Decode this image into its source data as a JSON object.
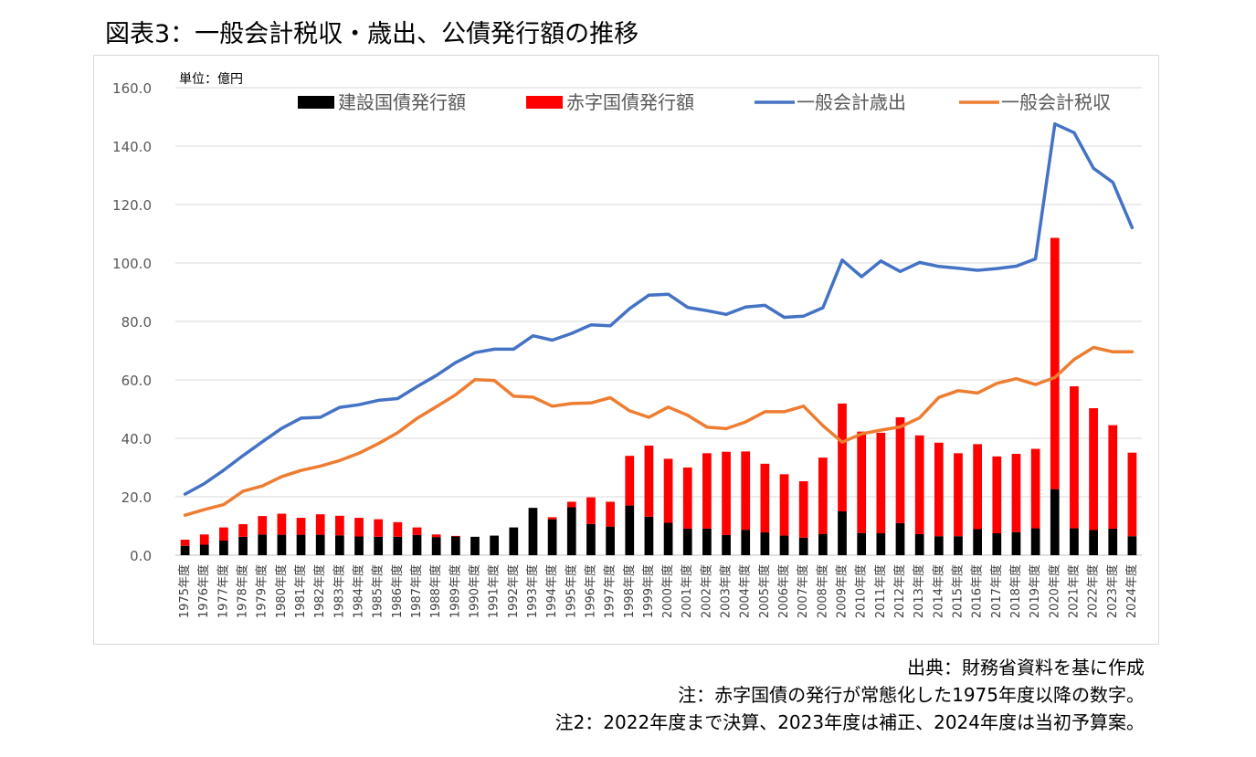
{
  "figure": {
    "title": "図表3：一般会計税収・歳出、公債発行額の推移"
  },
  "chart_data": {
    "type": "bar",
    "unit_label": "単位：億円",
    "stacked": true,
    "grid": true,
    "legend_position": "top",
    "ylim": [
      0,
      160
    ],
    "yticks": [
      "0.0",
      "20.0",
      "40.0",
      "60.0",
      "80.0",
      "100.0",
      "120.0",
      "140.0",
      "160.0"
    ],
    "categories": [
      "1975年度",
      "1976年度",
      "1977年度",
      "1978年度",
      "1979年度",
      "1980年度",
      "1981年度",
      "1982年度",
      "1983年度",
      "1984年度",
      "1985年度",
      "1986年度",
      "1987年度",
      "1988年度",
      "1989年度",
      "1990年度",
      "1991年度",
      "1992年度",
      "1993年度",
      "1994年度",
      "1995年度",
      "1996年度",
      "1997年度",
      "1998年度",
      "1999年度",
      "2000年度",
      "2001年度",
      "2002年度",
      "2003年度",
      "2004年度",
      "2005年度",
      "2006年度",
      "2007年度",
      "2008年度",
      "2009年度",
      "2010年度",
      "2011年度",
      "2012年度",
      "2013年度",
      "2014年度",
      "2015年度",
      "2016年度",
      "2017年度",
      "2018年度",
      "2019年度",
      "2020年度",
      "2021年度",
      "2022年度",
      "2023年度",
      "2024年度"
    ],
    "series": [
      {
        "name": "建設国債発行額",
        "kind": "bar",
        "color": "#000000",
        "values": [
          3.2,
          3.6,
          5.0,
          6.3,
          7.1,
          7.0,
          7.0,
          7.0,
          6.8,
          6.4,
          6.3,
          6.3,
          6.9,
          6.2,
          6.4,
          6.3,
          6.7,
          9.5,
          16.2,
          12.3,
          16.4,
          10.7,
          9.8,
          17.0,
          13.2,
          11.1,
          9.1,
          9.1,
          6.9,
          8.7,
          7.8,
          6.7,
          6.0,
          7.3,
          15.0,
          7.6,
          7.5,
          11.0,
          7.2,
          6.5,
          6.5,
          8.9,
          7.5,
          7.9,
          9.2,
          22.6,
          9.2,
          8.6,
          9.1,
          6.5
        ]
      },
      {
        "name": "赤字国債発行額",
        "kind": "bar",
        "color": "#ff0000",
        "values": [
          2.1,
          3.5,
          4.5,
          4.3,
          6.3,
          7.2,
          5.8,
          7.0,
          6.7,
          6.4,
          6.0,
          5.0,
          2.6,
          0.9,
          0.2,
          0.0,
          0.0,
          0.0,
          0.0,
          0.7,
          1.9,
          9.1,
          8.5,
          17.0,
          24.3,
          21.9,
          20.9,
          25.8,
          28.5,
          26.8,
          23.5,
          21.0,
          19.3,
          26.1,
          36.9,
          34.7,
          34.4,
          36.2,
          33.8,
          32.0,
          28.4,
          29.1,
          26.3,
          26.8,
          27.2,
          86.0,
          48.6,
          41.7,
          35.4,
          28.6
        ]
      },
      {
        "name": "一般会計歳出",
        "kind": "line",
        "color": "#4472c4",
        "values": [
          20.9,
          24.5,
          29.1,
          34.1,
          38.8,
          43.4,
          46.9,
          47.2,
          50.6,
          51.5,
          53.0,
          53.6,
          57.7,
          61.5,
          65.9,
          69.3,
          70.5,
          70.5,
          75.1,
          73.6,
          75.9,
          78.8,
          78.5,
          84.4,
          89.0,
          89.3,
          84.8,
          83.7,
          82.4,
          84.9,
          85.5,
          81.4,
          81.8,
          84.7,
          101.0,
          95.3,
          100.7,
          97.1,
          100.2,
          98.8,
          98.2,
          97.5,
          98.1,
          98.9,
          101.4,
          147.6,
          144.6,
          132.4,
          127.6,
          112.1
        ]
      },
      {
        "name": "一般会計税収",
        "kind": "line",
        "color": "#ed7d31",
        "values": [
          13.7,
          15.6,
          17.3,
          21.9,
          23.7,
          26.9,
          29.0,
          30.5,
          32.4,
          34.9,
          38.2,
          41.9,
          46.8,
          50.8,
          54.9,
          60.1,
          59.8,
          54.4,
          54.1,
          51.0,
          51.9,
          52.1,
          53.9,
          49.4,
          47.2,
          50.7,
          47.9,
          43.8,
          43.3,
          45.6,
          49.1,
          49.1,
          51.0,
          44.3,
          38.7,
          41.5,
          42.8,
          43.9,
          47.0,
          54.0,
          56.3,
          55.5,
          58.8,
          60.4,
          58.4,
          60.8,
          67.0,
          71.1,
          69.6,
          69.6
        ]
      }
    ]
  },
  "notes": {
    "source": "出典：財務省資料を基に作成",
    "note1": "注：赤字国債の発行が常態化した1975年度以降の数字。",
    "note2": "注2：2022年度まで決算、2023年度は補正、2024年度は当初予算案。"
  }
}
